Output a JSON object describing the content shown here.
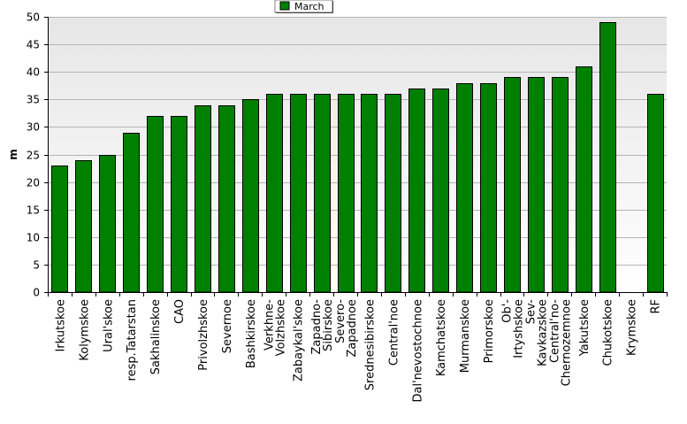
{
  "chart_data": {
    "type": "bar",
    "title": "",
    "xlabel": "",
    "ylabel": "m",
    "ylim": [
      0,
      50
    ],
    "yticks": [
      0,
      5,
      10,
      15,
      20,
      25,
      30,
      35,
      40,
      45,
      50
    ],
    "grid": true,
    "legend_position": "top-center",
    "categories": [
      "Irkutskoe",
      "Kolymskoe",
      "Ural'skoe",
      "resp.Tatarstan",
      "Sakhalinskoe",
      "CAO",
      "Privolzhskoe",
      "Severnoe",
      "Bashkirskoe",
      "Verkhne-Volzhskoe",
      "Zabaykal'skoe",
      "Zapadno-Sibirskoe",
      "Severo-Zapadnoe",
      "Srednesibirskoe",
      "Central'noe",
      "Dal'nevostochnoe",
      "Kamchatskoe",
      "Murmanskoe",
      "Primorskoe",
      "Ob'-Irtyshskoe",
      "Sev-Kavkazskoe",
      "Central'no-Chernozemnoe",
      "Yakutskoe",
      "Chukotskoe",
      "Krymskoe",
      "RF"
    ],
    "category_label_lines": [
      [
        "Irkutskoe"
      ],
      [
        "Kolymskoe"
      ],
      [
        "Ural'skoe"
      ],
      [
        "resp.Tatarstan"
      ],
      [
        "Sakhalinskoe"
      ],
      [
        "CAO"
      ],
      [
        "Privolzhskoe"
      ],
      [
        "Severnoe"
      ],
      [
        "Bashkirskoe"
      ],
      [
        "Verkhne-",
        "Volzhskoe"
      ],
      [
        "Zabaykal'skoe"
      ],
      [
        "Zapadno-",
        "Sibirskoe"
      ],
      [
        "Severo-",
        "Zapadnoe"
      ],
      [
        "Srednesibirskoe"
      ],
      [
        "Central'noe"
      ],
      [
        "Dal'nevostochnoe"
      ],
      [
        "Kamchatskoe"
      ],
      [
        "Murmanskoe"
      ],
      [
        "Primorskoe"
      ],
      [
        "Ob'-",
        "Irtyshskoe"
      ],
      [
        "Sev-",
        "Kavkazskoe"
      ],
      [
        "Central'no-",
        "Chernozemnoe"
      ],
      [
        "Yakutskoe"
      ],
      [
        "Chukotskoe"
      ],
      [
        "Krymskoe"
      ],
      [
        "RF"
      ]
    ],
    "series": [
      {
        "name": "March",
        "color": "#008000",
        "values": [
          23,
          24,
          25,
          29,
          32,
          32,
          34,
          34,
          35,
          36,
          36,
          36,
          36,
          36,
          36,
          37,
          37,
          38,
          38,
          39,
          39,
          39,
          41,
          49,
          null,
          36
        ]
      }
    ]
  }
}
